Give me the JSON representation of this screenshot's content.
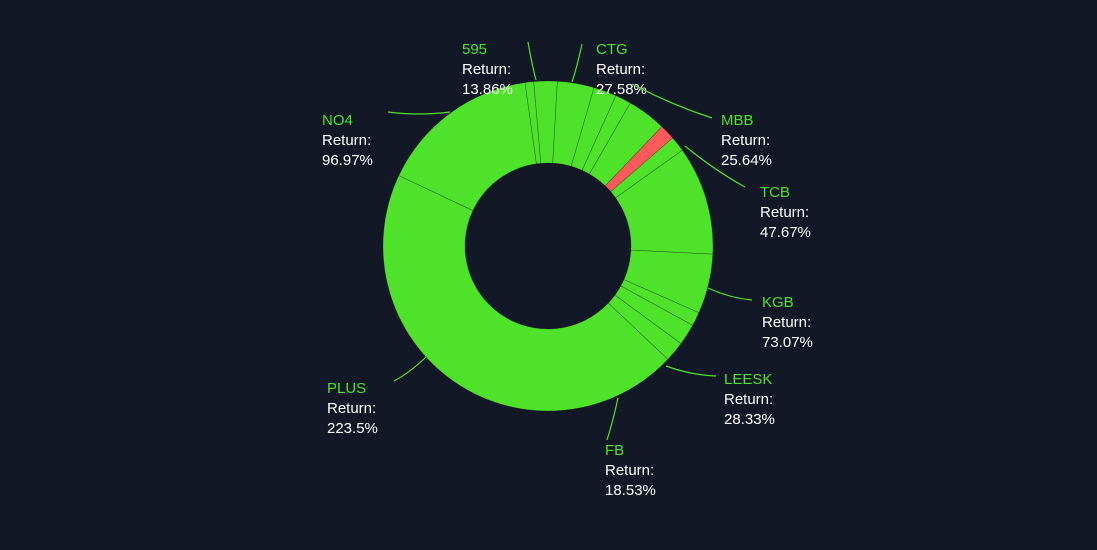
{
  "chart_data": {
    "type": "pie",
    "donut": true,
    "return_prefix": "Return:",
    "value_suffix": "%",
    "colors": {
      "background": "#121826",
      "positive": "#4ee22a",
      "negative": "#ff5a5a",
      "label_name": "#4ee22a",
      "label_text": "#ffffff",
      "leader": "#4ee22a"
    },
    "slices": [
      {
        "name": "595",
        "return": "13.86",
        "weight": 4.4,
        "negative": false
      },
      {
        "name": "CTG",
        "return": "27.58",
        "weight": 6.9,
        "negative": false
      },
      {
        "name": "MBB",
        "return": "25.64",
        "weight": 4.3,
        "negative": false
      },
      {
        "name": "",
        "return": "",
        "weight": 3.0,
        "negative": false
      },
      {
        "name": "",
        "return": "",
        "weight": 7.3,
        "negative": false
      },
      {
        "name": "TCB",
        "return": "47.67",
        "weight": 2.9,
        "negative": true
      },
      {
        "name": "",
        "return": "",
        "weight": 2.9,
        "negative": false
      },
      {
        "name": "KGB",
        "return": "73.07",
        "weight": 20.4,
        "negative": false
      },
      {
        "name": "LEESK",
        "return": "28.33",
        "weight": 11.2,
        "negative": false
      },
      {
        "name": "",
        "return": "",
        "weight": 2.6,
        "negative": false
      },
      {
        "name": "",
        "return": "",
        "weight": 4.0,
        "negative": false
      },
      {
        "name": "FB",
        "return": "18.53",
        "weight": 3.8,
        "negative": false
      },
      {
        "name": "PLUS",
        "return": "223.5",
        "weight": 86.2,
        "negative": false
      },
      {
        "name": "NO4",
        "return": "96.97",
        "weight": 30.2,
        "negative": false
      },
      {
        "name": "",
        "return": "",
        "weight": 1.6,
        "negative": false
      }
    ]
  }
}
